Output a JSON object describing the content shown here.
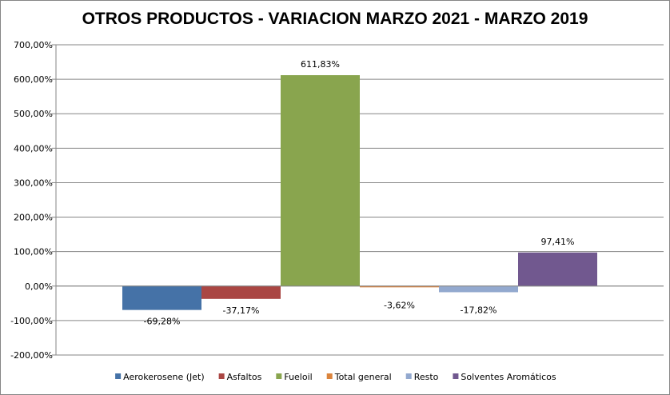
{
  "chart_data": {
    "type": "bar",
    "title": "OTROS PRODUCTOS - VARIACION MARZO 2021 - MARZO 2019",
    "xlabel": "",
    "ylabel": "",
    "ylim": [
      -200,
      700
    ],
    "yticks": [
      700,
      600,
      500,
      400,
      300,
      200,
      100,
      0,
      -100,
      -200
    ],
    "ytick_labels": [
      "700,00%",
      "600,00%",
      "500,00%",
      "400,00%",
      "300,00%",
      "200,00%",
      "100,00%",
      "0,00%",
      "-100,00%",
      "-200,00%"
    ],
    "grid": true,
    "legend_position": "bottom",
    "series": [
      {
        "name": "Aerokerosene (Jet)",
        "values": [
          -69.28
        ],
        "label": "-69,28%",
        "color": "#4572A7"
      },
      {
        "name": "Asfaltos",
        "values": [
          -37.17
        ],
        "label": "-37,17%",
        "color": "#AA4643"
      },
      {
        "name": "Fueloil",
        "values": [
          611.83
        ],
        "label": "611,83%",
        "color": "#89A54E"
      },
      {
        "name": "Total general",
        "values": [
          -3.62
        ],
        "label": "-3,62%",
        "color": "#DB843D"
      },
      {
        "name": "Resto",
        "values": [
          -17.82
        ],
        "label": "-17,82%",
        "color": "#93A9CF"
      },
      {
        "name": "Solventes Aromáticos",
        "values": [
          97.41
        ],
        "label": "97,41%",
        "color": "#71588F"
      }
    ]
  }
}
